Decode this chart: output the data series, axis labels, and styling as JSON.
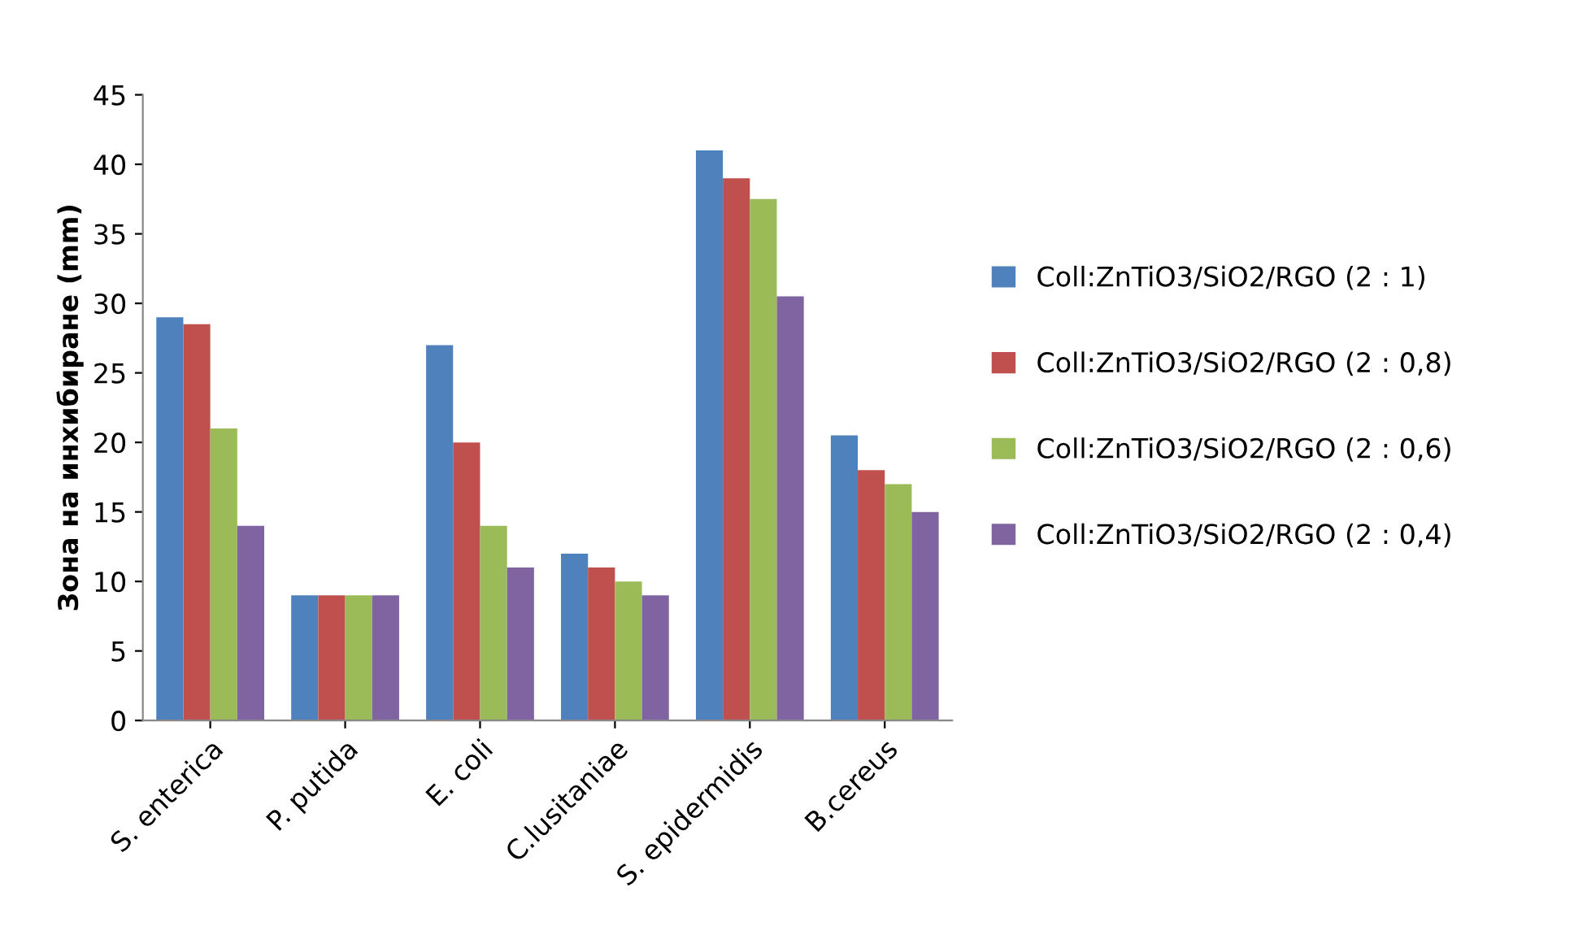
{
  "chart_data": {
    "type": "bar",
    "ylabel": "Зона на инхибиране (mm)",
    "categories": [
      "S. enterica",
      "P. putida",
      "E. coli",
      "C.lusitaniae",
      "S. epidermidis",
      "B.cereus"
    ],
    "series": [
      {
        "name": "Coll:ZnTiO3/SiO2/RGO (2 : 1)",
        "color": "#4f81bd",
        "values": [
          29,
          9,
          27,
          12,
          41,
          20.5
        ]
      },
      {
        "name": "Coll:ZnTiO3/SiO2/RGO (2 : 0,8)",
        "color": "#c0504d",
        "values": [
          28.5,
          9,
          20,
          11,
          39,
          18
        ]
      },
      {
        "name": "Coll:ZnTiO3/SiO2/RGO (2 : 0,6)",
        "color": "#9bbb59",
        "values": [
          21,
          9,
          14,
          10,
          37.5,
          17
        ]
      },
      {
        "name": "Coll:ZnTiO3/SiO2/RGO (2 : 0,4)",
        "color": "#8064a2",
        "values": [
          14,
          9,
          11,
          9,
          30.5,
          15
        ]
      }
    ],
    "ylim": [
      0,
      45
    ],
    "yticks": [
      0,
      5,
      10,
      15,
      20,
      25,
      30,
      35,
      40,
      45
    ],
    "grid": false,
    "legend": "right"
  }
}
